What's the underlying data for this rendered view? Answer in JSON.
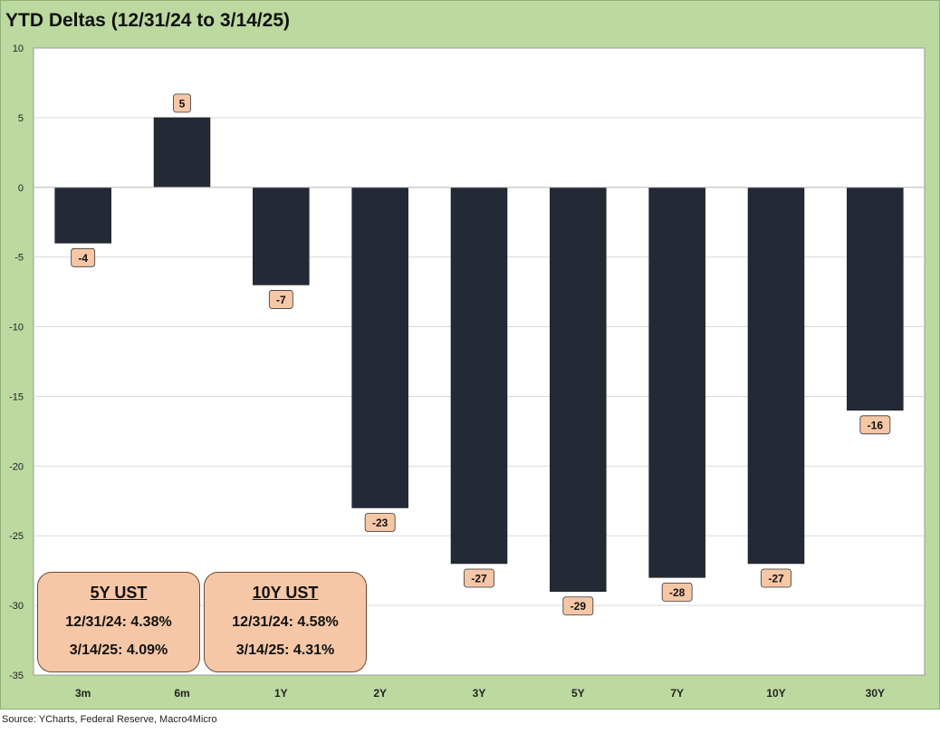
{
  "title": "YTD Deltas (12/31/24 to 3/14/25)",
  "source": "Source: YCharts, Federal Reserve, Macro4Micro",
  "chart_data": {
    "type": "bar",
    "title": "YTD Deltas (12/31/24 to 3/14/25)",
    "xlabel": "",
    "ylabel": "",
    "ylim": [
      -35,
      10
    ],
    "yticks": [
      10,
      5,
      0,
      -5,
      -10,
      -15,
      -20,
      -25,
      -30,
      -35
    ],
    "grid": true,
    "categories": [
      "3m",
      "6m",
      "1Y",
      "2Y",
      "3Y",
      "5Y",
      "7Y",
      "10Y",
      "30Y"
    ],
    "values": [
      -4,
      5,
      -7,
      -23,
      -27,
      -29,
      -28,
      -27,
      -16
    ],
    "bar_color": "#232a35",
    "label_bg": "#f6c7a6"
  },
  "boxes": [
    {
      "header": "5Y UST",
      "line1": "12/31/24: 4.38%",
      "line2": "3/14/25: 4.09%"
    },
    {
      "header": "10Y UST",
      "line1": "12/31/24: 4.58%",
      "line2": "3/14/25: 4.31%"
    }
  ]
}
